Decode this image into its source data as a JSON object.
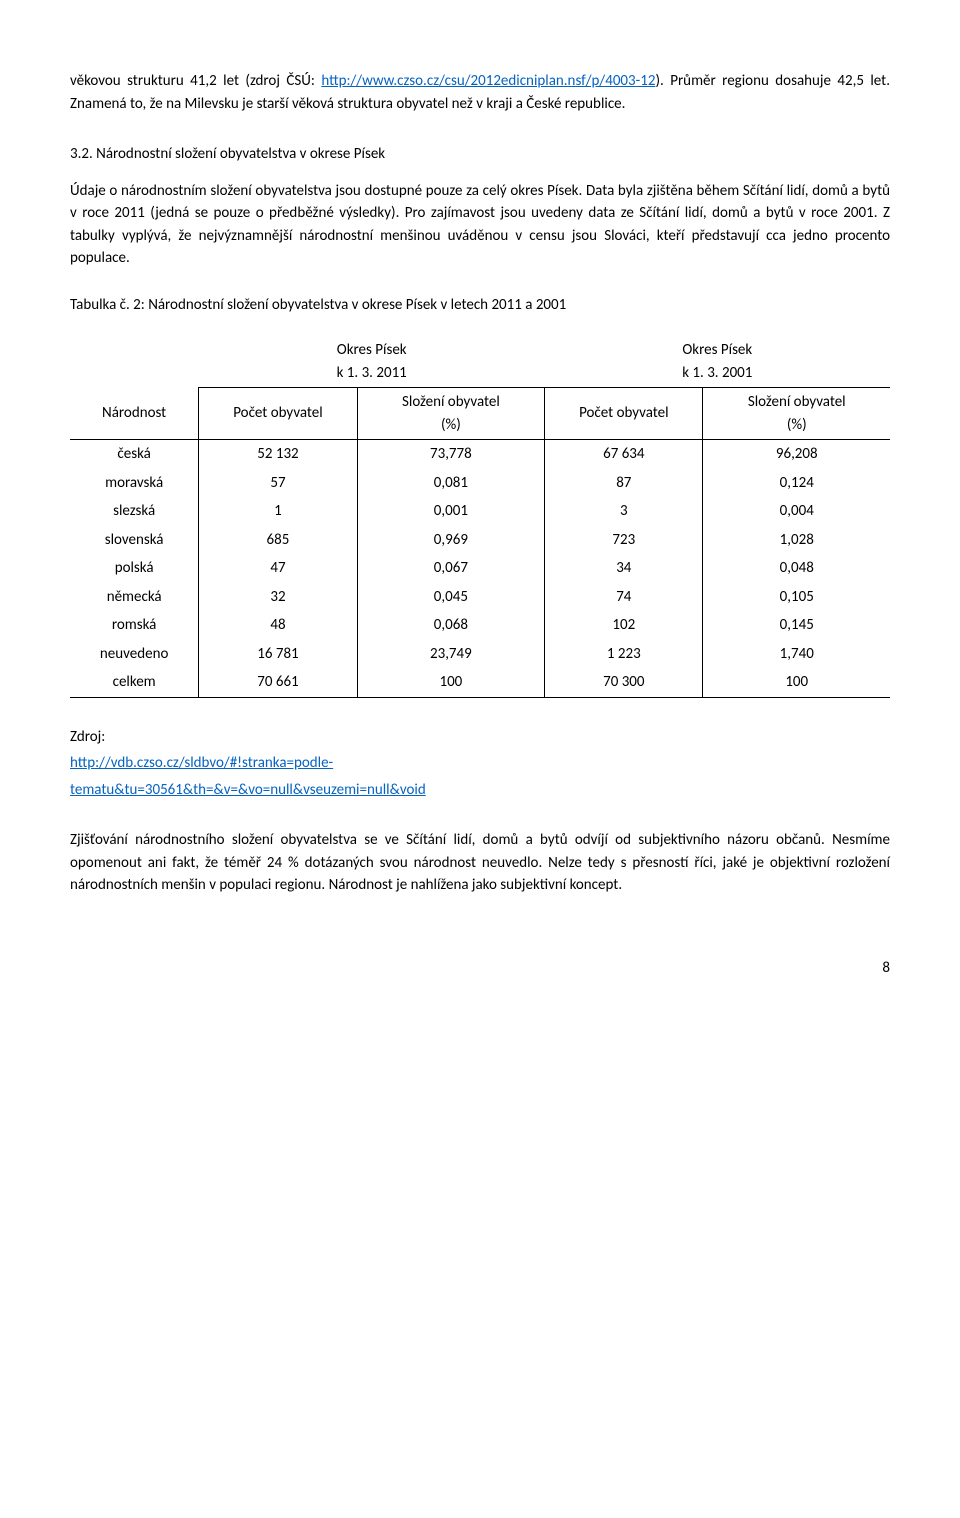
{
  "intro": {
    "line1a": "věkovou strukturu 41,2 let (zdroj ČSÚ: ",
    "link1": "http://www.czso.cz/csu/2012edicniplan.nsf/p/4003-12",
    "line1b": "). Průměr regionu dosahuje 42,5 let. Znamená to, že na Milevsku je starší věková struktura obyvatel než v kraji a České republice."
  },
  "section": {
    "heading": "3.2. Národnostní složení obyvatelstva v okrese Písek",
    "para": "Údaje o národnostním složení obyvatelstva jsou dostupné pouze za celý okres Písek. Data byla zjištěna během Sčítání lidí, domů a bytů v roce 2011 (jedná se pouze o předběžné výsledky). Pro zajímavost jsou uvedeny data ze Sčítání lidí, domů a bytů v roce 2001. Z tabulky vyplývá, že nejvýznamnější národnostní menšinou uváděnou v censu jsou Slováci, kteří představují cca jedno procento populace."
  },
  "table": {
    "caption": "Tabulka č. 2: Národnostní složení obyvatelstva v okrese Písek v letech 2011 a 2001",
    "h_col1": "Národnost",
    "h_group1_a": "Okres Písek",
    "h_group1_b": "k 1. 3. 2011",
    "h_group2_a": "Okres Písek",
    "h_group2_b": "k 1. 3. 2001",
    "h_count": "Počet obyvatel",
    "h_pct_a": "Složení obyvatel",
    "h_pct_b": "(%)",
    "rows": [
      {
        "n": "česká",
        "c1": "52 132",
        "p1": "73,778",
        "c2": "67 634",
        "p2": "96,208"
      },
      {
        "n": "moravská",
        "c1": "57",
        "p1": "0,081",
        "c2": "87",
        "p2": "0,124"
      },
      {
        "n": "slezská",
        "c1": "1",
        "p1": "0,001",
        "c2": "3",
        "p2": "0,004"
      },
      {
        "n": "slovenská",
        "c1": "685",
        "p1": "0,969",
        "c2": "723",
        "p2": "1,028"
      },
      {
        "n": "polská",
        "c1": "47",
        "p1": "0,067",
        "c2": "34",
        "p2": "0,048"
      },
      {
        "n": "německá",
        "c1": "32",
        "p1": "0,045",
        "c2": "74",
        "p2": "0,105"
      },
      {
        "n": "romská",
        "c1": "48",
        "p1": "0,068",
        "c2": "102",
        "p2": "0,145"
      },
      {
        "n": "neuvedeno",
        "c1": "16 781",
        "p1": "23,749",
        "c2": "1 223",
        "p2": "1,740"
      },
      {
        "n": "celkem",
        "c1": "70 661",
        "p1": "100",
        "c2": "70 300",
        "p2": "100"
      }
    ],
    "col_widths": {
      "narodnost": 110,
      "count": 140,
      "pct": 170
    }
  },
  "source": {
    "label": "Zdroj:",
    "link_a": "http://vdb.czso.cz/sldbvo/#!stranka=podle-",
    "link_b": "tematu&tu=30561&th=&v=&vo=null&vseuzemi=null&void"
  },
  "closing": {
    "para": "Zjišťování národnostního složení obyvatelstva se ve Sčítání lidí, domů a bytů odvíjí od subjektivního názoru občanů. Nesmíme opomenout ani fakt, že téměř 24 % dotázaných svou národnost neuvedlo. Nelze tedy s přesností říci, jaké je objektivní rozložení národnostních menšin v populaci regionu. Národnost je nahlížena jako subjektivní koncept."
  },
  "page_number": "8"
}
